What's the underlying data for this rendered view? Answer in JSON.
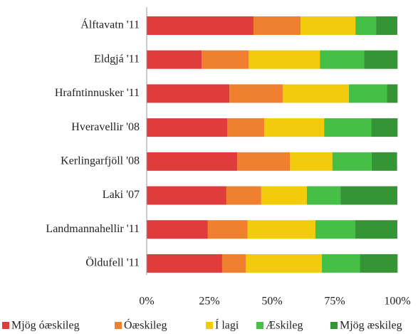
{
  "chart_data": {
    "type": "stacked-bar-horizontal",
    "categories": [
      "Álftavatn '11",
      "Eldgjá '11",
      "Hrafntinnusker '11",
      "Hveravellir '08",
      "Kerlingarfjöll '08",
      "Laki '07",
      "Landmannahellir '11",
      "Öldufell '11"
    ],
    "series": [
      {
        "name": "Mjög óæskileg",
        "color": "#e03c3c",
        "values": [
          42.6,
          21.9,
          33.0,
          32.1,
          36.1,
          31.8,
          24.4,
          30.1
        ]
      },
      {
        "name": "Óæskileg",
        "color": "#ef8030",
        "values": [
          18.8,
          18.8,
          21.3,
          14.8,
          21.0,
          13.9,
          15.9,
          9.4
        ]
      },
      {
        "name": "Í lagi",
        "color": "#f2cc0c",
        "values": [
          21.9,
          28.4,
          26.4,
          23.9,
          17.0,
          18.2,
          27.0,
          30.4
        ]
      },
      {
        "name": "Æskileg",
        "color": "#45bf45",
        "values": [
          8.2,
          17.6,
          15.1,
          18.8,
          15.6,
          13.4,
          15.9,
          15.1
        ]
      },
      {
        "name": "Mjög æskileg",
        "color": "#359535",
        "values": [
          8.5,
          13.4,
          4.3,
          10.5,
          10.2,
          22.7,
          16.8,
          15.1
        ]
      }
    ],
    "xlim": [
      0,
      100
    ],
    "xticks": [
      {
        "value": 0,
        "label": "0%"
      },
      {
        "value": 25,
        "label": "25%"
      },
      {
        "value": 50,
        "label": "50%"
      },
      {
        "value": 75,
        "label": "75%"
      },
      {
        "value": 100,
        "label": "100%"
      }
    ],
    "legend": "bottom"
  }
}
